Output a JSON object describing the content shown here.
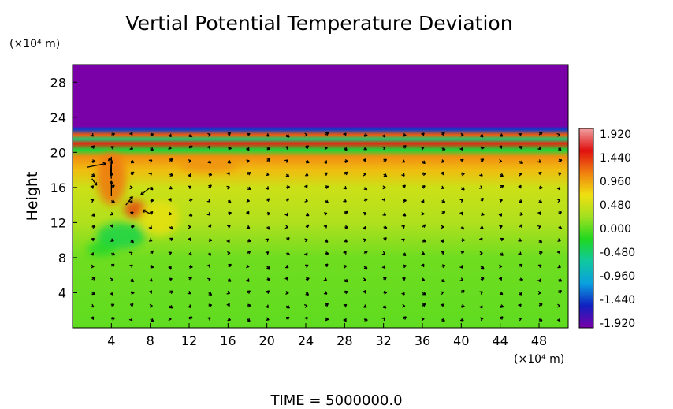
{
  "chart_data": {
    "type": "heatmap",
    "title": "Vertial Potential Temperature Deviation",
    "ylabel": "Height",
    "xlabel": "",
    "x_unit": "(×10⁴ m)",
    "y_unit": "(×10⁴ m)",
    "footer": "TIME  =  5000000.0",
    "xlim": [
      0,
      51
    ],
    "ylim": [
      0,
      30
    ],
    "xticks": [
      4,
      8,
      12,
      16,
      20,
      24,
      28,
      32,
      36,
      40,
      44,
      48
    ],
    "yticks": [
      4,
      8,
      12,
      16,
      20,
      24,
      28
    ],
    "colorbar": {
      "range": [
        -1.92,
        1.92
      ],
      "labels": [
        "1.920",
        "1.440",
        "0.960",
        "0.480",
        "0.000",
        "-0.480",
        "-0.960",
        "-1.440",
        "-1.920"
      ],
      "stops": [
        "#7a00a8",
        "#1020c0",
        "#0aa0e0",
        "#10c8a0",
        "#20d820",
        "#a0e020",
        "#f0e010",
        "#f08010",
        "#e01010",
        "#f0a0a0"
      ]
    },
    "field_rows": [
      {
        "y": 0,
        "value": 0.0
      },
      {
        "y": 8,
        "value": 0.05
      },
      {
        "y": 12,
        "value": 0.3
      },
      {
        "y": 16,
        "value": 0.45
      },
      {
        "y": 18,
        "value": 0.8
      },
      {
        "y": 19.5,
        "value": 1.0
      },
      {
        "y": 20.3,
        "value": -0.3
      },
      {
        "y": 21,
        "value": 1.4
      },
      {
        "y": 21.5,
        "value": -0.5
      },
      {
        "y": 22,
        "value": 1.2
      },
      {
        "y": 22.6,
        "value": -1.4
      },
      {
        "y": 23,
        "value": -1.92
      },
      {
        "y": 30,
        "value": -1.92
      }
    ],
    "anomalies": [
      {
        "x": 6.5,
        "y": 13.5,
        "rx": 1.2,
        "ry": 1.0,
        "value": 1.3
      },
      {
        "x": 4.0,
        "y": 17.0,
        "rx": 1.5,
        "ry": 3.0,
        "value": 1.1
      },
      {
        "x": 5.0,
        "y": 10.5,
        "rx": 2.5,
        "ry": 1.5,
        "value": -0.35
      },
      {
        "x": 3.0,
        "y": 9.0,
        "rx": 1.5,
        "ry": 0.8,
        "value": -0.25
      },
      {
        "x": 9.0,
        "y": 12.5,
        "rx": 2.0,
        "ry": 2.0,
        "value": 0.6
      },
      {
        "x": 14.0,
        "y": 18.5,
        "rx": 3.0,
        "ry": 0.7,
        "value": 1.0
      }
    ],
    "vectors": [
      {
        "x": 1.5,
        "y": 18.3,
        "u": 2.0,
        "v": 0.4
      },
      {
        "x": 4.0,
        "y": 19.5,
        "u": 0.0,
        "v": -2.0
      },
      {
        "x": 4.0,
        "y": 17.0,
        "u": -0.2,
        "v": 2.2
      },
      {
        "x": 4.0,
        "y": 15.0,
        "u": 0.0,
        "v": 1.6
      },
      {
        "x": 5.5,
        "y": 14.0,
        "u": 0.7,
        "v": 0.9
      },
      {
        "x": 8.0,
        "y": 16.0,
        "u": -1.0,
        "v": -0.8
      },
      {
        "x": 8.0,
        "y": 13.0,
        "u": -0.8,
        "v": 0.4
      },
      {
        "x": 2.0,
        "y": 17.0,
        "u": 0.5,
        "v": -0.7
      }
    ],
    "grid": false,
    "legend": "right"
  }
}
